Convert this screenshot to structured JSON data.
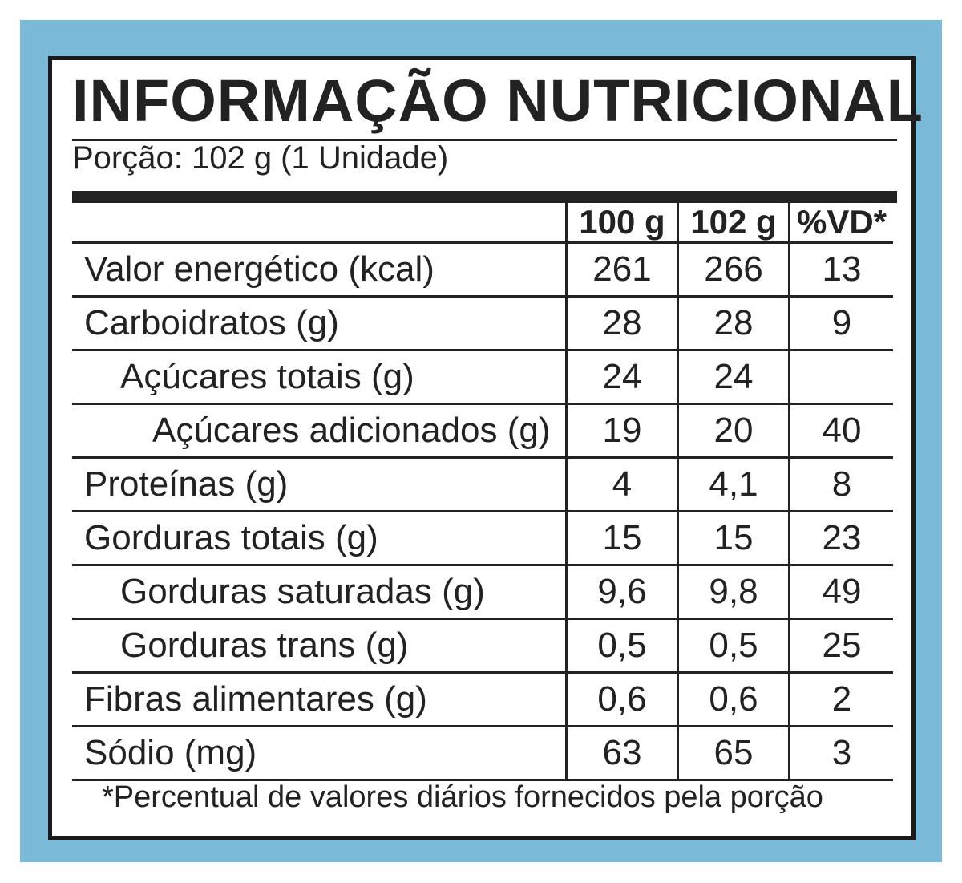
{
  "title": "INFORMAÇÃO NUTRICIONAL",
  "portion": "Porção: 102 g (1 Unidade)",
  "headers": [
    "",
    "100 g",
    "102 g",
    "%VD*"
  ],
  "rows": [
    {
      "label": "Valor energético (kcal)",
      "per100": "261",
      "perPortion": "266",
      "vd": "13"
    },
    {
      "label": "Carboidratos (g)",
      "per100": "28",
      "perPortion": "28",
      "vd": "9"
    },
    {
      "label": "Açúcares totais (g)",
      "per100": "24",
      "perPortion": "24",
      "vd": ""
    },
    {
      "label": "Açúcares adicionados (g)",
      "per100": "19",
      "perPortion": "20",
      "vd": "40"
    },
    {
      "label": "Proteínas (g)",
      "per100": "4",
      "perPortion": "4,1",
      "vd": "8"
    },
    {
      "label": "Gorduras totais (g)",
      "per100": "15",
      "perPortion": "15",
      "vd": "23"
    },
    {
      "label": "Gorduras saturadas (g)",
      "per100": "9,6",
      "perPortion": "9,8",
      "vd": "49"
    },
    {
      "label": "Gorduras trans (g)",
      "per100": "0,5",
      "perPortion": "0,5",
      "vd": "25"
    },
    {
      "label": "Fibras alimentares (g)",
      "per100": "0,6",
      "perPortion": "0,6",
      "vd": "2"
    },
    {
      "label": "Sódio (mg)",
      "per100": "63",
      "perPortion": "65",
      "vd": "3"
    }
  ],
  "footnote": "*Percentual de valores diários fornecidos pela porção",
  "colors": {
    "background": "#7ab9d8",
    "ink": "#222222"
  }
}
